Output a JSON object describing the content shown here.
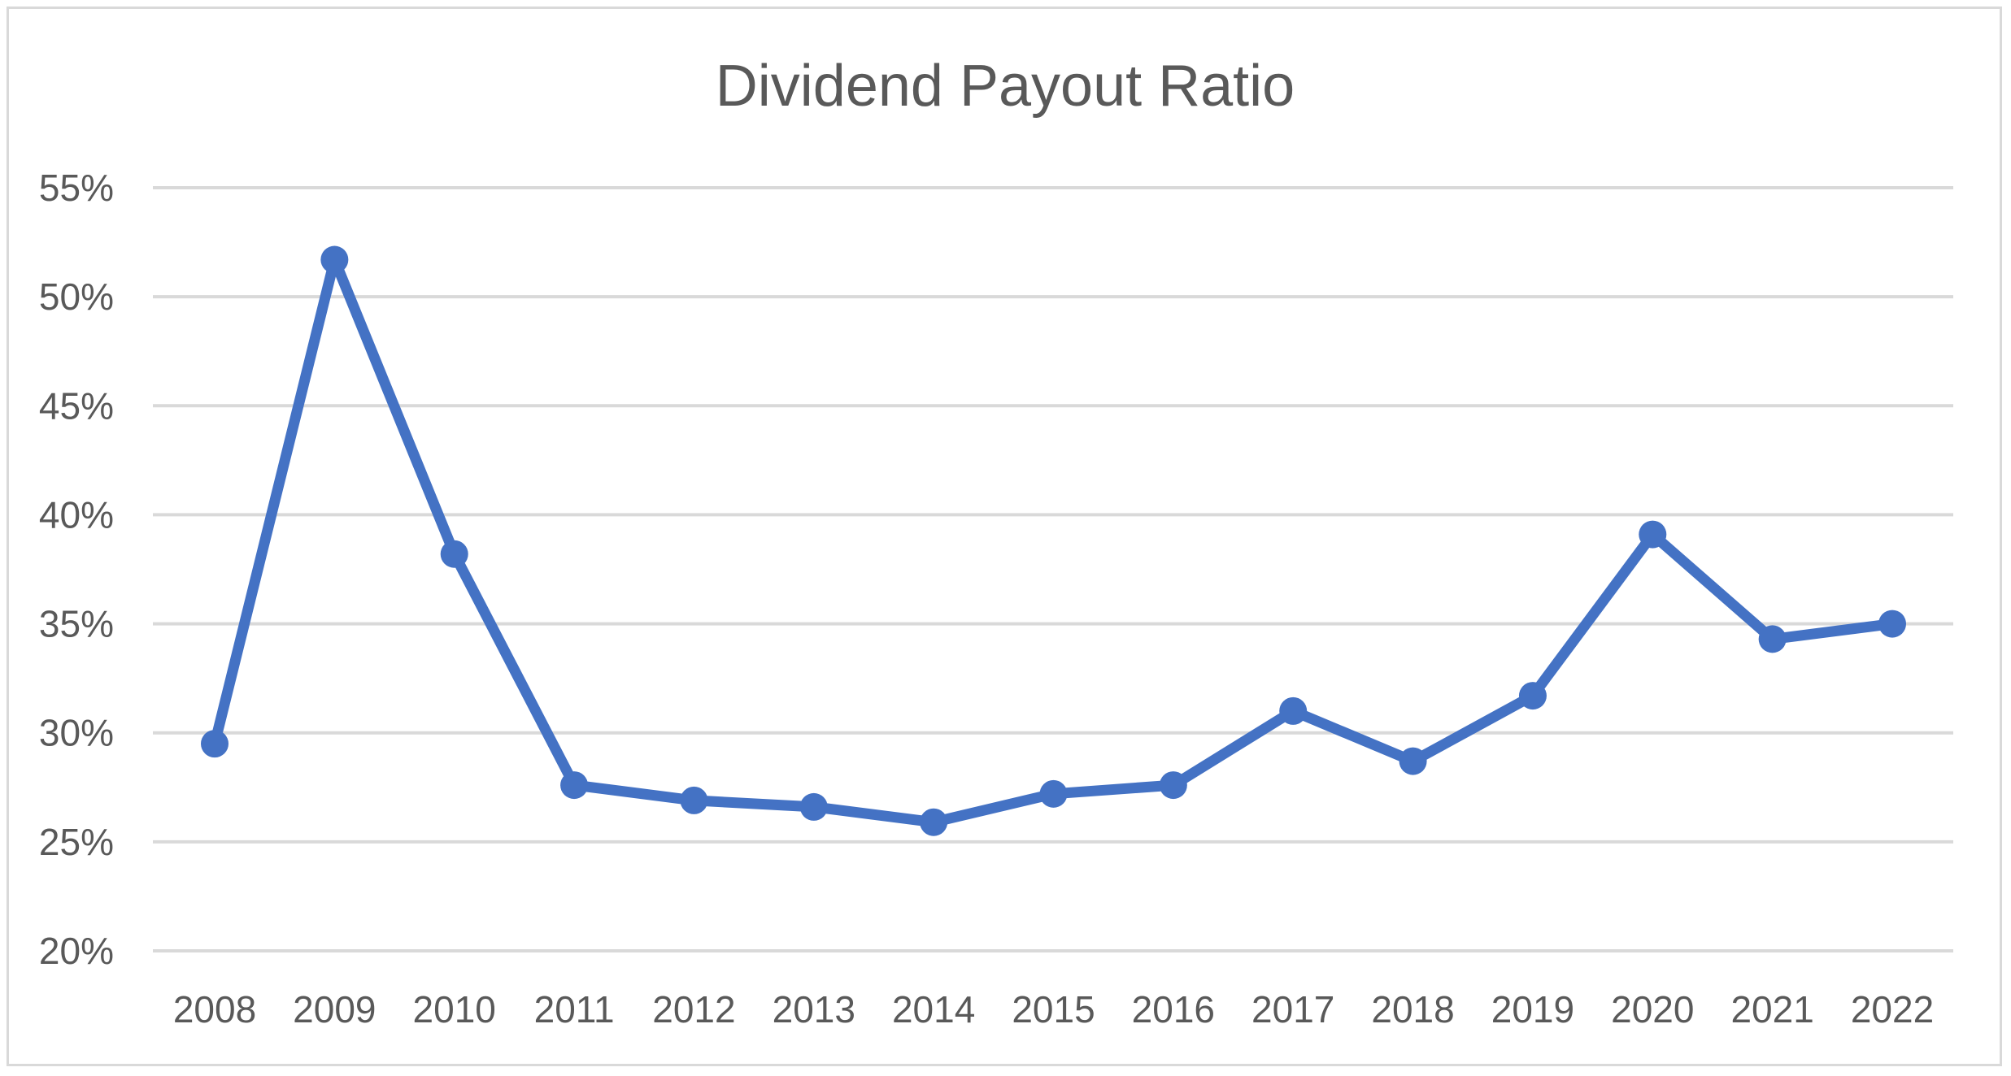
{
  "chart_data": {
    "type": "line",
    "title": "Dividend Payout Ratio",
    "xlabel": "",
    "ylabel": "",
    "categories": [
      "2008",
      "2009",
      "2010",
      "2011",
      "2012",
      "2013",
      "2014",
      "2015",
      "2016",
      "2017",
      "2018",
      "2019",
      "2020",
      "2021",
      "2022"
    ],
    "series": [
      {
        "values": [
          29.5,
          51.7,
          38.2,
          27.6,
          26.9,
          26.6,
          25.9,
          27.2,
          27.6,
          31.0,
          28.7,
          31.7,
          39.1,
          34.3,
          35.0
        ]
      }
    ],
    "ylim": [
      20,
      55
    ],
    "yticks": [
      20,
      25,
      30,
      35,
      40,
      45,
      50,
      55
    ],
    "ytick_format": "{v}%",
    "grid": true,
    "legend": "none",
    "colors": {
      "series": "#4472c4",
      "grid": "#d9d9d9",
      "text": "#595959"
    }
  }
}
